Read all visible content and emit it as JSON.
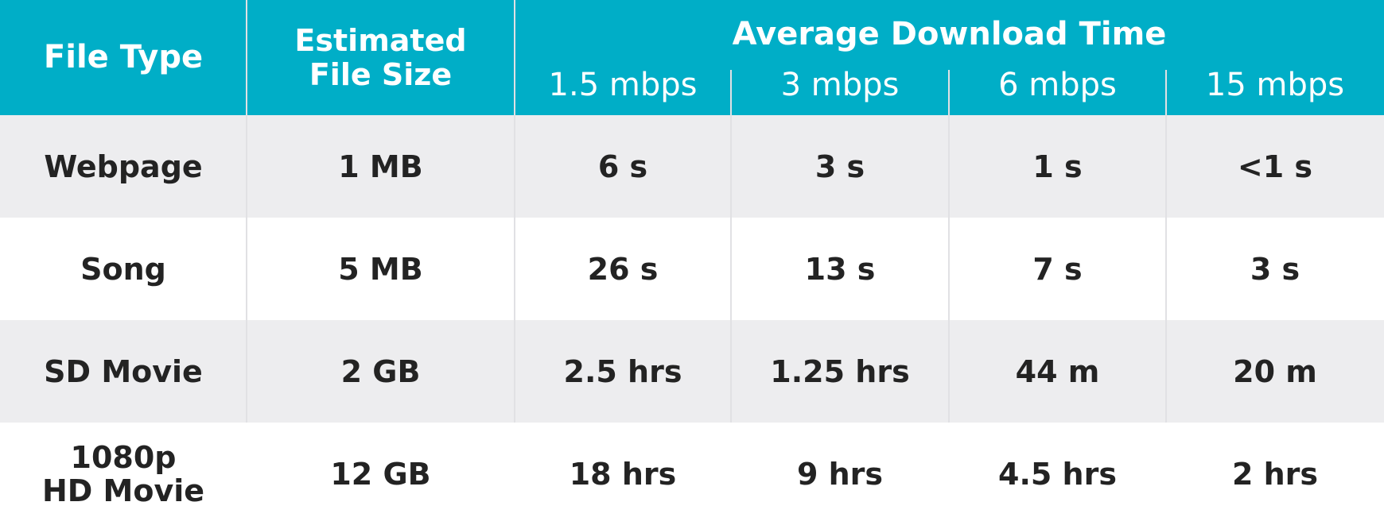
{
  "colors": {
    "header_bg": "#00aec7",
    "header_text": "#ffffff",
    "row_shade": "#ededef",
    "row_plain": "#ffffff",
    "body_text": "#232323"
  },
  "header": {
    "file_type": "File Type",
    "file_size_line1": "Estimated",
    "file_size_line2": "File Size",
    "group_title": "Average Download Time",
    "speeds": [
      "1.5 mbps",
      "3 mbps",
      "6 mbps",
      "15 mbps"
    ]
  },
  "rows": [
    {
      "file_type": [
        "Webpage"
      ],
      "size": "1 MB",
      "times": [
        "6 s",
        "3 s",
        "1 s",
        "<1 s"
      ]
    },
    {
      "file_type": [
        "Song"
      ],
      "size": "5 MB",
      "times": [
        "26 s",
        "13 s",
        "7 s",
        "3 s"
      ]
    },
    {
      "file_type": [
        "SD Movie"
      ],
      "size": "2 GB",
      "times": [
        "2.5 hrs",
        "1.25 hrs",
        "44 m",
        "20 m"
      ]
    },
    {
      "file_type": [
        "1080p",
        "HD Movie"
      ],
      "size": "12 GB",
      "times": [
        "18 hrs",
        "9 hrs",
        "4.5 hrs",
        "2 hrs"
      ]
    }
  ]
}
